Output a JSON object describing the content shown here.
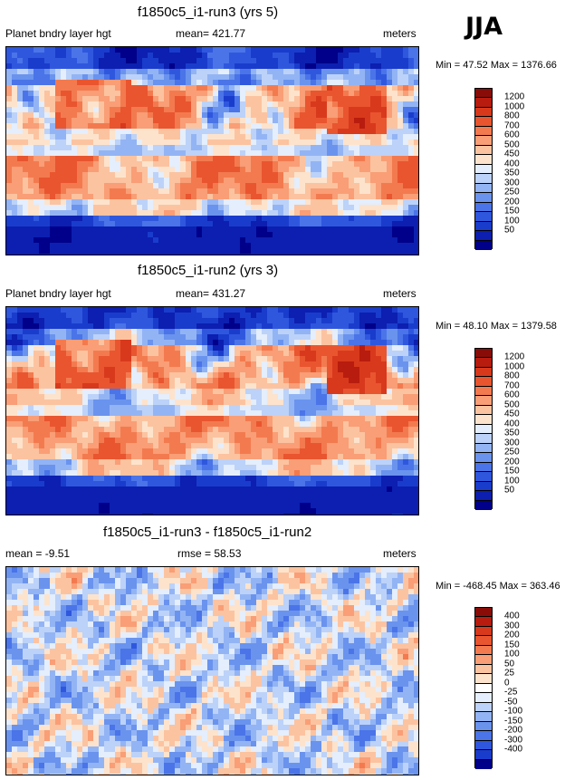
{
  "season": "JJA",
  "panels": [
    {
      "id": "run3",
      "title": "f1850c5_i1-run3 (yrs 5)",
      "left": "Planet bndry layer hgt",
      "center": "mean= 421.77",
      "right": "meters",
      "range": "Min =  47.52 Max = 1376.66",
      "levels": [
        "1200",
        "1000",
        "800",
        "700",
        "600",
        "500",
        "450",
        "400",
        "350",
        "300",
        "250",
        "200",
        "150",
        "100",
        "50"
      ]
    },
    {
      "id": "run2",
      "title": "f1850c5_i1-run2 (yrs 3)",
      "left": "Planet bndry layer hgt",
      "center": "mean= 431.27",
      "right": "meters",
      "range": "Min =  48.10 Max = 1379.58",
      "levels": [
        "1200",
        "1000",
        "800",
        "700",
        "600",
        "500",
        "450",
        "400",
        "350",
        "300",
        "250",
        "200",
        "150",
        "100",
        "50"
      ]
    },
    {
      "id": "diff",
      "title": "f1850c5_i1-run3 - f1850c5_i1-run2",
      "left": "mean =  -9.51",
      "center": "rmse =  58.53",
      "right": "meters",
      "range": "Min = -468.45 Max = 363.46",
      "levels": [
        "400",
        "300",
        "200",
        "150",
        "100",
        "50",
        "25",
        "0",
        "-25",
        "-50",
        "-100",
        "-150",
        "-200",
        "-300",
        "-400"
      ]
    }
  ],
  "chart_data": [
    {
      "type": "heatmap",
      "title": "f1850c5_i1-run3 (yrs 5)",
      "variable": "Planet bndry layer hgt",
      "units": "meters",
      "mean": 421.77,
      "min": 47.52,
      "max": 1376.66,
      "contour_levels": [
        50,
        100,
        150,
        200,
        250,
        300,
        350,
        400,
        450,
        500,
        600,
        700,
        800,
        1000,
        1200
      ],
      "colors": [
        "#00008a",
        "#0c1fb0",
        "#1a3ccc",
        "#2f57de",
        "#4a74e8",
        "#6a93ee",
        "#93b4f4",
        "#bcd2f8",
        "#e4eefc",
        "#fde3cc",
        "#fcc3a0",
        "#f99e76",
        "#f37a4f",
        "#e9552f",
        "#d8391c",
        "#b81c0e",
        "#8a0c08"
      ]
    },
    {
      "type": "heatmap",
      "title": "f1850c5_i1-run2 (yrs 3)",
      "variable": "Planet bndry layer hgt",
      "units": "meters",
      "mean": 431.27,
      "min": 48.1,
      "max": 1379.58,
      "contour_levels": [
        50,
        100,
        150,
        200,
        250,
        300,
        350,
        400,
        450,
        500,
        600,
        700,
        800,
        1000,
        1200
      ],
      "colors": [
        "#00008a",
        "#0c1fb0",
        "#1a3ccc",
        "#2f57de",
        "#4a74e8",
        "#6a93ee",
        "#93b4f4",
        "#bcd2f8",
        "#e4eefc",
        "#fde3cc",
        "#fcc3a0",
        "#f99e76",
        "#f37a4f",
        "#e9552f",
        "#d8391c",
        "#b81c0e",
        "#8a0c08"
      ]
    },
    {
      "type": "heatmap",
      "title": "f1850c5_i1-run3 - f1850c5_i1-run2",
      "units": "meters",
      "mean": -9.51,
      "rmse": 58.53,
      "min": -468.45,
      "max": 363.46,
      "contour_levels": [
        -400,
        -300,
        -200,
        -150,
        -100,
        -50,
        -25,
        0,
        25,
        50,
        100,
        150,
        200,
        300,
        400
      ],
      "colors": [
        "#00008a",
        "#0c1fb0",
        "#1a3ccc",
        "#2f57de",
        "#4a74e8",
        "#6a93ee",
        "#93b4f4",
        "#bcd2f8",
        "#e4eefc",
        "#fde3cc",
        "#fcc3a0",
        "#f99e76",
        "#f37a4f",
        "#e9552f",
        "#d8391c",
        "#b81c0e",
        "#8a0c08"
      ]
    }
  ],
  "palette": [
    "#8a0c08",
    "#b81c0e",
    "#d8391c",
    "#e9552f",
    "#f37a4f",
    "#f99e76",
    "#fcc3a0",
    "#fde3cc",
    "#ffffff",
    "#e4eefc",
    "#bcd2f8",
    "#93b4f4",
    "#6a93ee",
    "#4a74e8",
    "#2f57de",
    "#1a3ccc",
    "#00008a"
  ]
}
